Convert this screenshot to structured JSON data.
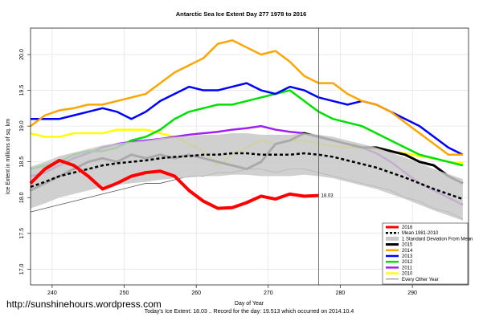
{
  "chart_data": {
    "type": "line",
    "title": "Antarctic Sea Ice Extent Day 277 1978 to 2016",
    "x_label": "Day of Year",
    "y_label": "Ice Extent in millions of sq. km",
    "footnote": "Today's Ice Extent: 18.03 .. Record for the day: 19.513 which occurred on 2014.10.4",
    "watermark": "http://sunshinehours.wordpress.com",
    "annotation": {
      "text": "18.03",
      "x": 277,
      "y": 18.03,
      "color": "#ff0000"
    },
    "marker_x": 277,
    "xlim": [
      237,
      297.8
    ],
    "ylim": [
      16.78,
      20.37
    ],
    "xticks": [
      240,
      250,
      260,
      270,
      280,
      290
    ],
    "yticks": [
      {
        "value": 17,
        "label": "17.0"
      },
      17.5,
      {
        "value": 18,
        "label": "18.0"
      },
      18.5,
      {
        "value": 19,
        "label": "19.0"
      },
      19.5,
      {
        "value": 20,
        "label": "20.0"
      }
    ],
    "grid": true,
    "legend": "bottom-right",
    "x": [
      237,
      239,
      241,
      243,
      245,
      247,
      249,
      251,
      253,
      255,
      257,
      259,
      261,
      263,
      265,
      267,
      269,
      271,
      273,
      275,
      277,
      279,
      281,
      283,
      285,
      287,
      289,
      291,
      293,
      295,
      297
    ],
    "series": [
      {
        "name": "2016",
        "color": "#ff0000",
        "width": 4,
        "values": [
          18.2,
          18.4,
          18.52,
          18.45,
          18.3,
          18.12,
          18.2,
          18.3,
          18.35,
          18.37,
          18.3,
          18.1,
          17.95,
          17.85,
          17.86,
          17.93,
          18.02,
          17.98,
          18.05,
          18.02,
          18.03,
          null,
          null,
          null,
          null,
          null,
          null,
          null,
          null,
          null,
          null
        ]
      },
      {
        "name": "Mean 1981-2010",
        "color": "#000000",
        "width": 2.5,
        "dashed": true,
        "values": [
          18.15,
          18.22,
          18.3,
          18.35,
          18.4,
          18.45,
          18.48,
          18.5,
          18.52,
          18.55,
          18.57,
          18.58,
          18.6,
          18.6,
          18.62,
          18.62,
          18.6,
          18.6,
          18.6,
          18.62,
          18.6,
          18.57,
          18.52,
          18.47,
          18.42,
          18.35,
          18.28,
          18.2,
          18.12,
          18.05,
          17.98
        ]
      },
      {
        "name": "1 Standard Deviation From Mean",
        "color": "#c8c8c8",
        "band": true,
        "upper": [
          18.43,
          18.5,
          18.58,
          18.63,
          18.68,
          18.73,
          18.76,
          18.78,
          18.8,
          18.83,
          18.85,
          18.86,
          18.88,
          18.88,
          18.9,
          18.9,
          18.88,
          18.88,
          18.88,
          18.9,
          18.88,
          18.85,
          18.8,
          18.75,
          18.7,
          18.63,
          18.56,
          18.48,
          18.4,
          18.33,
          18.26
        ],
        "lower": [
          17.85,
          17.92,
          18.0,
          18.05,
          18.1,
          18.15,
          18.18,
          18.2,
          18.22,
          18.25,
          18.27,
          18.28,
          18.3,
          18.3,
          18.32,
          18.32,
          18.3,
          18.3,
          18.3,
          18.32,
          18.3,
          18.27,
          18.22,
          18.17,
          18.12,
          18.05,
          17.98,
          17.9,
          17.82,
          17.75,
          17.68
        ]
      },
      {
        "name": "2015",
        "color": "#000000",
        "width": 3,
        "values": [
          18.1,
          18.2,
          18.3,
          18.4,
          18.5,
          18.55,
          18.5,
          18.6,
          18.55,
          18.6,
          18.55,
          18.6,
          18.55,
          18.5,
          18.45,
          18.4,
          18.5,
          18.75,
          18.8,
          18.9,
          18.85,
          18.8,
          18.75,
          18.7,
          18.7,
          18.65,
          18.6,
          18.5,
          18.45,
          18.3,
          18.2
        ]
      },
      {
        "name": "2014",
        "color": "#ffa500",
        "width": 2.5,
        "values": [
          19.0,
          19.15,
          19.22,
          19.25,
          19.3,
          19.3,
          19.35,
          19.4,
          19.45,
          19.6,
          19.75,
          19.85,
          19.95,
          20.15,
          20.2,
          20.1,
          20.0,
          20.05,
          19.9,
          19.7,
          19.6,
          19.6,
          19.45,
          19.35,
          19.3,
          19.2,
          19.05,
          18.9,
          18.75,
          18.6,
          18.6
        ]
      },
      {
        "name": "2013",
        "color": "#0000ff",
        "width": 2.5,
        "values": [
          19.1,
          19.1,
          19.1,
          19.15,
          19.2,
          19.25,
          19.2,
          19.1,
          19.2,
          19.35,
          19.45,
          19.55,
          19.5,
          19.5,
          19.55,
          19.6,
          19.5,
          19.45,
          19.55,
          19.5,
          19.4,
          19.35,
          19.3,
          19.35,
          19.3,
          19.2,
          19.1,
          19.0,
          18.85,
          18.7,
          18.6
        ]
      },
      {
        "name": "2012",
        "color": "#00e000",
        "width": 2.5,
        "values": [
          18.4,
          18.45,
          18.5,
          18.6,
          18.65,
          18.65,
          18.7,
          18.8,
          18.85,
          18.95,
          19.1,
          19.2,
          19.25,
          19.3,
          19.3,
          19.35,
          19.4,
          19.45,
          19.5,
          19.35,
          19.2,
          19.1,
          19.05,
          19.0,
          18.9,
          18.8,
          18.7,
          18.6,
          18.55,
          18.5,
          18.45
        ]
      },
      {
        "name": "2011",
        "color": "#a020f0",
        "width": 2.5,
        "values": [
          18.3,
          18.35,
          18.45,
          18.55,
          18.62,
          18.7,
          18.75,
          18.78,
          18.8,
          18.82,
          18.85,
          18.88,
          18.9,
          18.92,
          18.95,
          18.97,
          19.0,
          18.95,
          18.92,
          18.9,
          18.85,
          18.8,
          18.75,
          18.7,
          18.62,
          18.5,
          18.35,
          18.2,
          18.1,
          18.0,
          17.9
        ]
      },
      {
        "name": "2010",
        "color": "#ffff00",
        "width": 2.5,
        "values": [
          18.9,
          18.85,
          18.85,
          18.9,
          18.9,
          18.9,
          18.95,
          18.95,
          18.95,
          18.9,
          18.85,
          18.75,
          18.65,
          18.45,
          18.6,
          18.7,
          18.8,
          18.75,
          18.8,
          18.8,
          18.75,
          18.72,
          18.7,
          18.7,
          18.68,
          18.65,
          18.62,
          18.58,
          18.55,
          18.5,
          18.48
        ]
      },
      {
        "name": "Every Other Year",
        "color": "#555555",
        "width": 0.8,
        "values": [
          17.8,
          17.85,
          17.9,
          17.95,
          18.0,
          18.05,
          18.1,
          18.15,
          18.2,
          18.2,
          18.25,
          18.3,
          18.3,
          18.35,
          18.35,
          18.4,
          18.4,
          18.35,
          18.4,
          18.4,
          18.35,
          18.3,
          18.25,
          18.2,
          18.15,
          18.1,
          18.0,
          17.95,
          17.85,
          17.8,
          17.7
        ]
      }
    ]
  }
}
